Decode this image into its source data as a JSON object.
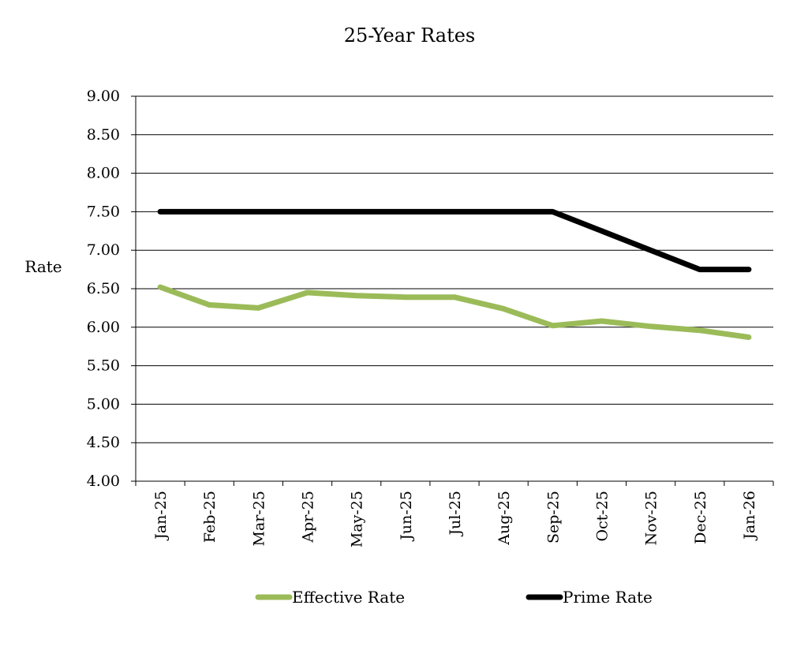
{
  "chart_data": {
    "type": "line",
    "title": "25-Year Rates",
    "xlabel": "",
    "ylabel": "Rate",
    "categories": [
      "Jan-25",
      "Feb-25",
      "Mar-25",
      "Apr-25",
      "May-25",
      "Jun-25",
      "Jul-25",
      "Aug-25",
      "Sep-25",
      "Oct-25",
      "Nov-25",
      "Dec-25",
      "Jan-26"
    ],
    "ylim": [
      4.0,
      9.0
    ],
    "yticks": [
      "4.00",
      "4.50",
      "5.00",
      "5.50",
      "6.00",
      "6.50",
      "7.00",
      "7.50",
      "8.00",
      "8.50",
      "9.00"
    ],
    "grid": true,
    "legend_position": "bottom",
    "series": [
      {
        "name": "Effective Rate",
        "color": "#9bbb59",
        "values": [
          6.52,
          6.29,
          6.25,
          6.45,
          6.41,
          6.39,
          6.39,
          6.24,
          6.02,
          6.08,
          6.01,
          5.96,
          5.87
        ]
      },
      {
        "name": "Prime Rate",
        "color": "#000000",
        "values": [
          7.5,
          7.5,
          7.5,
          7.5,
          7.5,
          7.5,
          7.5,
          7.5,
          7.5,
          7.25,
          7.0,
          6.75,
          6.75
        ]
      }
    ]
  }
}
